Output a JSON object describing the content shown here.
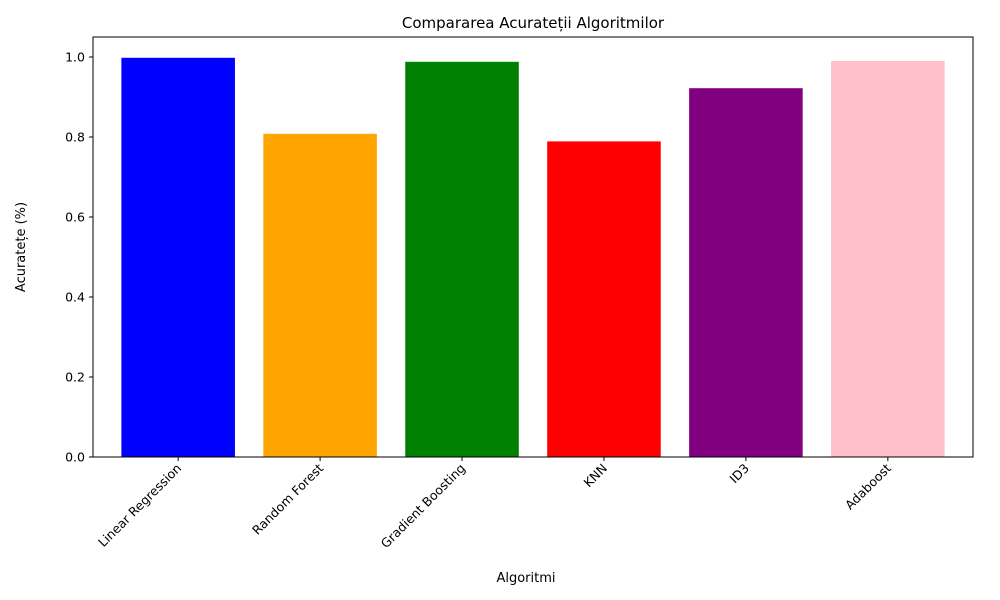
{
  "chart_data": {
    "type": "bar",
    "title": "Compararea Acurateții Algoritmilor",
    "xlabel": "Algoritmi",
    "ylabel": "Acuratețe (%)",
    "categories": [
      "Linear Regression",
      "Random Forest",
      "Gradient Boosting",
      "KNN",
      "ID3",
      "Adaboost"
    ],
    "values": [
      0.998,
      0.808,
      0.988,
      0.789,
      0.922,
      0.99
    ],
    "colors": [
      "#0000ff",
      "#ffa500",
      "#008000",
      "#ff0000",
      "#800080",
      "#ffc0cb"
    ],
    "ylim": [
      0,
      1.05
    ],
    "yticks": [
      "0.0",
      "0.2",
      "0.4",
      "0.6",
      "0.8",
      "1.0"
    ],
    "grid": false,
    "legend": "none"
  }
}
